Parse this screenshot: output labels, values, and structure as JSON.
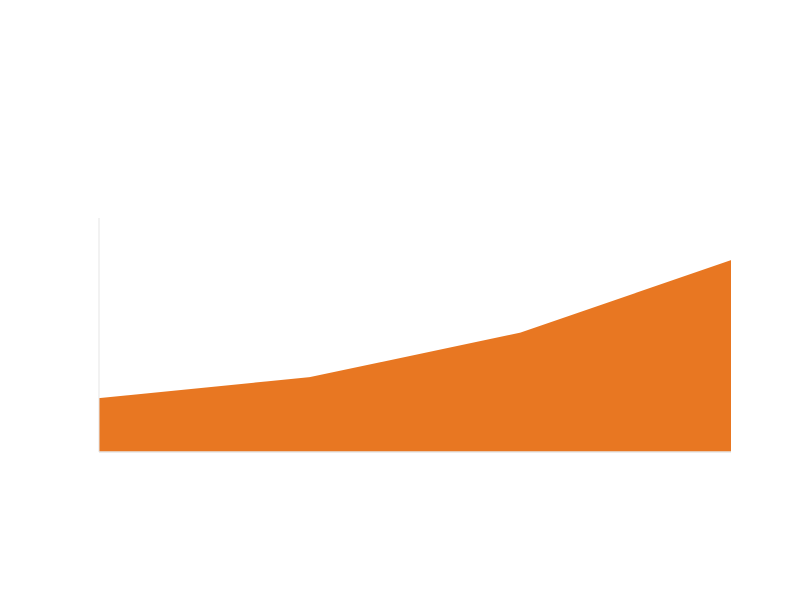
{
  "chart_data": {
    "type": "area",
    "x": [
      0,
      1,
      2,
      3
    ],
    "series": [
      {
        "values": [
          0.23,
          0.32,
          0.51,
          0.82
        ],
        "color": "#e87722"
      }
    ],
    "xlim": [
      0,
      3
    ],
    "ylim": [
      0,
      1
    ],
    "grid": false,
    "legend": "none",
    "axis_color": "#e6e6e6"
  }
}
